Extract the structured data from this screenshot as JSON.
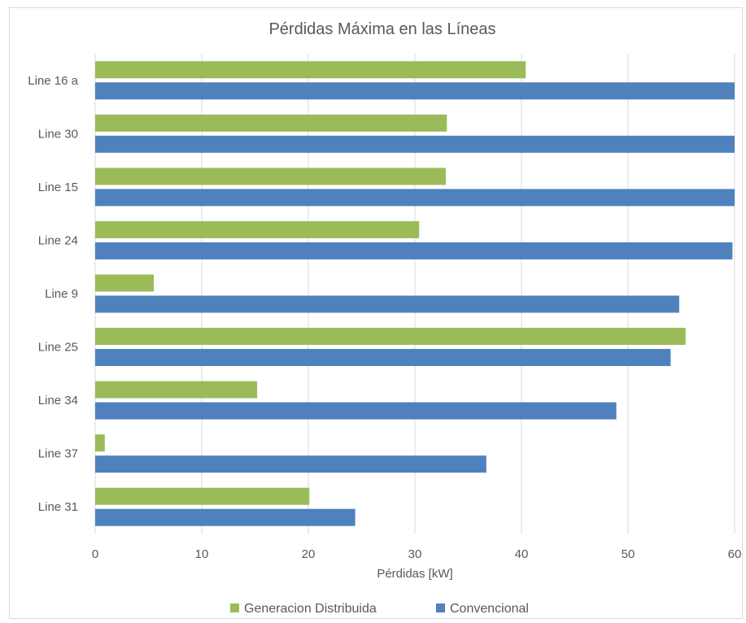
{
  "chart_data": {
    "type": "bar",
    "orientation": "horizontal",
    "title": "Pérdidas Máxima en las Líneas",
    "xlabel": "Pérdidas [kW]",
    "ylabel": "",
    "xlim": [
      0,
      60
    ],
    "x_ticks": [
      0,
      10,
      20,
      30,
      40,
      50,
      60
    ],
    "grid": true,
    "legend_position": "bottom",
    "categories": [
      "Line 16 a",
      "Line 30",
      "Line 15",
      "Line 24",
      "Line 9",
      "Line 25",
      "Line 34",
      "Line 37",
      "Line 31"
    ],
    "series": [
      {
        "name": "Generacion Distribuida",
        "color": "#9bbb59",
        "values": [
          40.4,
          33.0,
          32.9,
          30.4,
          5.5,
          55.4,
          15.2,
          0.9,
          20.1
        ]
      },
      {
        "name": "Convencional",
        "color": "#4f81bd",
        "values": [
          60.0,
          60.0,
          60.0,
          59.8,
          54.8,
          54.0,
          48.9,
          36.7,
          24.4
        ]
      }
    ]
  }
}
